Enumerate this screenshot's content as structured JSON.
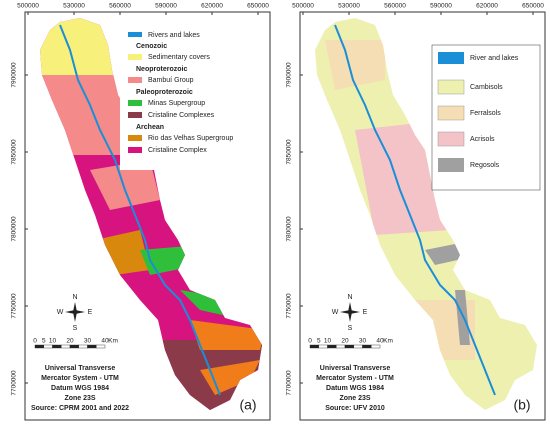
{
  "panels": [
    {
      "label": "(a)",
      "x_ticks": [
        500000,
        530000,
        560000,
        590000,
        620000,
        650000
      ],
      "y_ticks": [
        7900000,
        7850000,
        7800000,
        7750000,
        7700000
      ],
      "legend": {
        "rivers": "Rivers and lakes",
        "groups": [
          {
            "era": "Cenozoic",
            "items": [
              "Sedimentary covers"
            ]
          },
          {
            "era": "Neoproterozoic",
            "items": [
              "Bambuí Group"
            ]
          },
          {
            "era": "Paleoproterozoic",
            "items": [
              "Minas Supergroup",
              "Cristaline Complexes"
            ]
          },
          {
            "era": "Archean",
            "items": [
              "Rio das Velhas Supergroup",
              "Cristaline Complex"
            ]
          }
        ]
      },
      "compass": [
        "N",
        "S",
        "W",
        "E"
      ],
      "scale": [
        "0",
        "5",
        "10",
        "20",
        "30",
        "40",
        "Km"
      ],
      "info": [
        "Universal Transverse",
        "Mercator System - UTM",
        "Datum  WGS 1984",
        "Zone 23S",
        "Source: CPRM 2001 and 2022"
      ]
    },
    {
      "label": "(b)",
      "x_ticks": [
        500000,
        530000,
        560000,
        590000,
        620000,
        650000
      ],
      "y_ticks": [
        7900000,
        7850000,
        7800000,
        7750000,
        7700000
      ],
      "legend": [
        "River and lakes",
        "Cambisols",
        "Ferralsols",
        "Acrisols",
        "Regosols"
      ],
      "compass": [
        "N",
        "S",
        "W",
        "E"
      ],
      "scale": [
        "0",
        "5",
        "10",
        "20",
        "30",
        "40",
        "Km"
      ],
      "info": [
        "Universal Transverse",
        "Mercator System - UTM",
        "Datum  WGS 1984",
        "Zone 23S",
        "Source: UFV 2010"
      ]
    }
  ]
}
